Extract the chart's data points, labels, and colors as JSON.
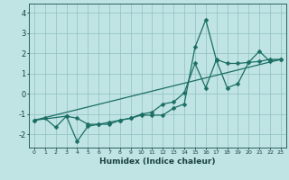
{
  "title": "",
  "xlabel": "Humidex (Indice chaleur)",
  "bg_color": "#c0e4e4",
  "line_color": "#1a6e64",
  "grid_color": "#90c0c0",
  "xlim": [
    -0.5,
    23.5
  ],
  "ylim": [
    -2.65,
    4.45
  ],
  "xticks": [
    0,
    1,
    2,
    3,
    4,
    5,
    6,
    7,
    8,
    9,
    10,
    11,
    12,
    13,
    14,
    15,
    16,
    17,
    18,
    19,
    20,
    21,
    22,
    23
  ],
  "yticks": [
    -2,
    -1,
    0,
    1,
    2,
    3,
    4
  ],
  "series1_x": [
    0,
    1,
    2,
    3,
    4,
    5,
    6,
    7,
    8,
    9,
    10,
    11,
    12,
    13,
    14,
    15,
    16,
    17,
    18,
    19,
    20,
    21,
    22,
    23
  ],
  "series1_y": [
    -1.3,
    -1.2,
    -1.65,
    -1.1,
    -2.35,
    -1.6,
    -1.5,
    -1.5,
    -1.3,
    -1.2,
    -1.05,
    -1.05,
    -1.05,
    -0.7,
    -0.5,
    2.3,
    3.65,
    1.65,
    0.3,
    0.5,
    1.55,
    2.1,
    1.6,
    1.7
  ],
  "series2_x": [
    0,
    3,
    4,
    5,
    6,
    7,
    8,
    9,
    10,
    11,
    12,
    13,
    14,
    15,
    16,
    17,
    18,
    19,
    20,
    21,
    22,
    23
  ],
  "series2_y": [
    -1.3,
    -1.1,
    -1.2,
    -1.5,
    -1.5,
    -1.4,
    -1.3,
    -1.2,
    -1.0,
    -0.9,
    -0.5,
    -0.4,
    0.05,
    1.5,
    0.3,
    1.7,
    1.5,
    1.5,
    1.55,
    1.6,
    1.7,
    1.7
  ],
  "series3_x": [
    0,
    23
  ],
  "series3_y": [
    -1.3,
    1.7
  ],
  "markersize": 2.5,
  "linewidth": 0.9
}
